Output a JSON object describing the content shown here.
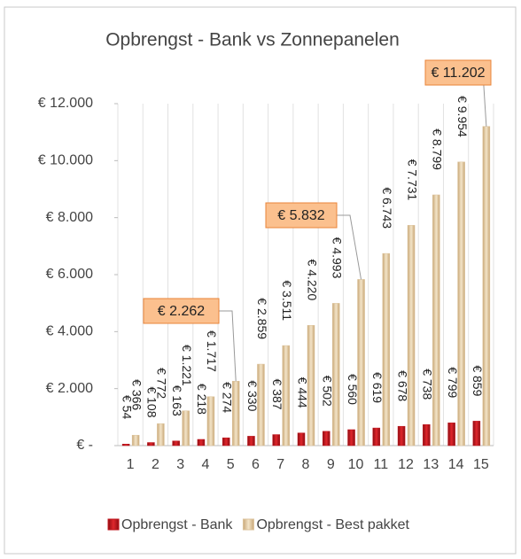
{
  "chart_data": {
    "type": "bar",
    "title": "Opbrengst - Bank vs Zonnepanelen",
    "categories": [
      "1",
      "2",
      "3",
      "4",
      "5",
      "6",
      "7",
      "8",
      "9",
      "10",
      "11",
      "12",
      "13",
      "14",
      "15"
    ],
    "series": [
      {
        "name": "Opbrengst - Bank",
        "color": "#c0141c",
        "values": [
          54,
          108,
          163,
          218,
          274,
          330,
          387,
          444,
          502,
          560,
          619,
          678,
          738,
          799,
          859
        ],
        "value_labels": [
          "€ 54",
          "€ 108",
          "€ 163",
          "€ 218",
          "€ 274",
          "€ 330",
          "€ 387",
          "€ 444",
          "€ 502",
          "€ 560",
          "€ 619",
          "€ 678",
          "€ 738",
          "€ 799",
          "€ 859"
        ]
      },
      {
        "name": "Opbrengst - Best pakket",
        "color": "#dcc39c",
        "values": [
          366,
          772,
          1221,
          1717,
          2262,
          2859,
          3511,
          4220,
          4993,
          5832,
          6743,
          7731,
          8799,
          9954,
          11202
        ],
        "value_labels": [
          "€ 366",
          "€ 772",
          "€ 1.221",
          "€ 1.717",
          "€ 2.262",
          "€ 2.859",
          "€ 3.511",
          "€ 4.220",
          "€ 4.993",
          "€ 5.832",
          "€ 6.743",
          "€ 7.731",
          "€ 8.799",
          "€ 9.954",
          "€ 11.202"
        ]
      }
    ],
    "ylim": [
      0,
      12000
    ],
    "yticks": [
      {
        "value": 0,
        "label": "€ -"
      },
      {
        "value": 2000,
        "label": "€ 2.000"
      },
      {
        "value": 4000,
        "label": "€ 4.000"
      },
      {
        "value": 6000,
        "label": "€ 6.000"
      },
      {
        "value": 8000,
        "label": "€ 8.000"
      },
      {
        "value": 10000,
        "label": "€ 10.000"
      },
      {
        "value": 12000,
        "label": "€ 12.000"
      }
    ],
    "legend": "bottom"
  }
}
